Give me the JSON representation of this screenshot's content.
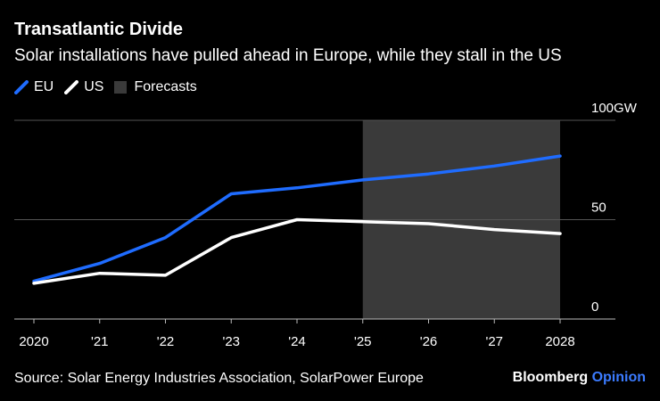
{
  "header": {
    "title": "Transatlantic Divide",
    "subtitle": "Solar installations have pulled ahead in Europe, while they stall in the US"
  },
  "legend": [
    {
      "label": "EU",
      "color": "#1f6cff",
      "kind": "line"
    },
    {
      "label": "US",
      "color": "#ffffff",
      "kind": "line"
    },
    {
      "label": "Forecasts",
      "color": "#3a3a3a",
      "kind": "box"
    }
  ],
  "footer": {
    "source": "Source: Solar Energy Industries Association, SolarPower Europe",
    "brand_main": "Bloomberg",
    "brand_accent": "Opinion"
  },
  "chart_data": {
    "type": "line",
    "x": [
      2020,
      2021,
      2022,
      2023,
      2024,
      2025,
      2026,
      2027,
      2028
    ],
    "x_tick_labels": [
      "2020",
      "'21",
      "'22",
      "'23",
      "'24",
      "'25",
      "'26",
      "'27",
      "2028"
    ],
    "series": [
      {
        "name": "EU",
        "color": "#1f6cff",
        "values": [
          19,
          28,
          41,
          63,
          66,
          70,
          73,
          77,
          82
        ]
      },
      {
        "name": "US",
        "color": "#ffffff",
        "values": [
          18,
          23,
          22,
          41,
          50,
          49,
          48,
          45,
          43
        ]
      }
    ],
    "y_ticks": [
      {
        "value": 100,
        "label": "100GW"
      },
      {
        "value": 50,
        "label": "50"
      },
      {
        "value": 0,
        "label": "0"
      }
    ],
    "ylim": [
      0,
      100
    ],
    "xlim": [
      2020,
      2028
    ],
    "forecast_range": [
      2025,
      2028
    ],
    "forecast_color": "#3a3a3a",
    "grid": true,
    "legend_position": "top-left"
  }
}
